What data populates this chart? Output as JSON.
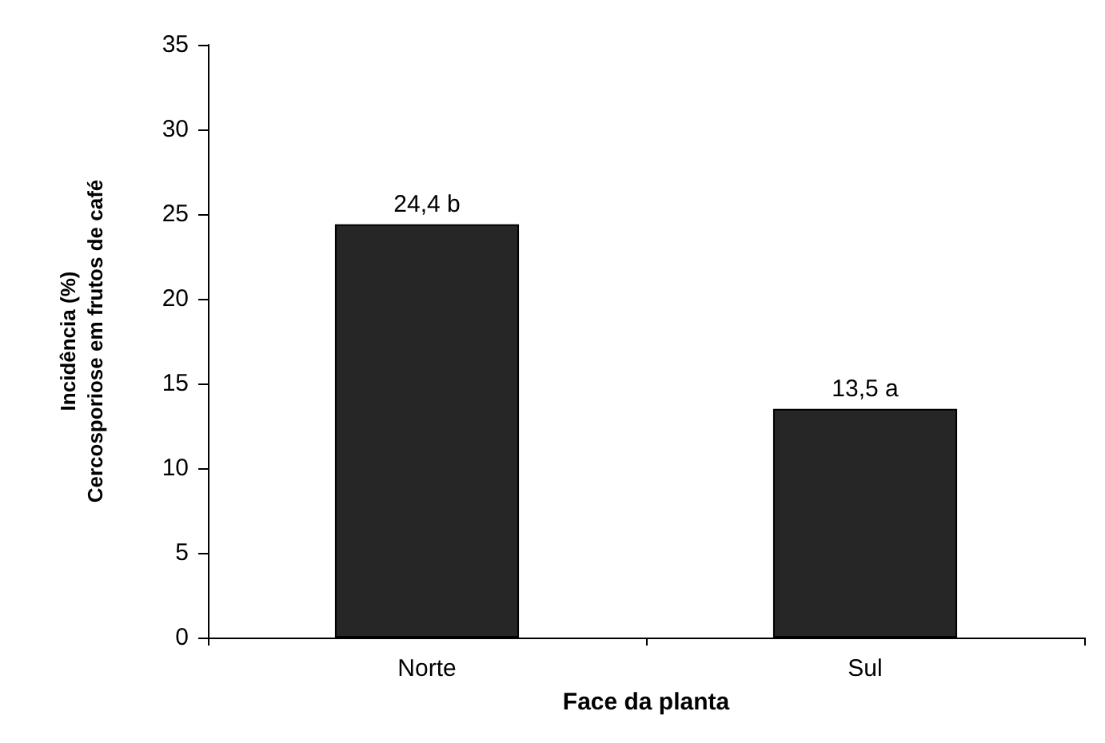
{
  "chart_data": {
    "type": "bar",
    "xlabel": "Face da planta",
    "ylabel": "Incidência (%)\nCercosporiose em frutos de café",
    "categories": [
      "Norte",
      "Sul"
    ],
    "values": [
      24.4,
      13.5
    ],
    "value_labels": [
      "24,4 b",
      "13,5 a"
    ],
    "color": "#262626",
    "ylim": [
      0,
      35
    ],
    "yticks": [
      0,
      5,
      10,
      15,
      20,
      25,
      30,
      35
    ],
    "grid": false
  }
}
